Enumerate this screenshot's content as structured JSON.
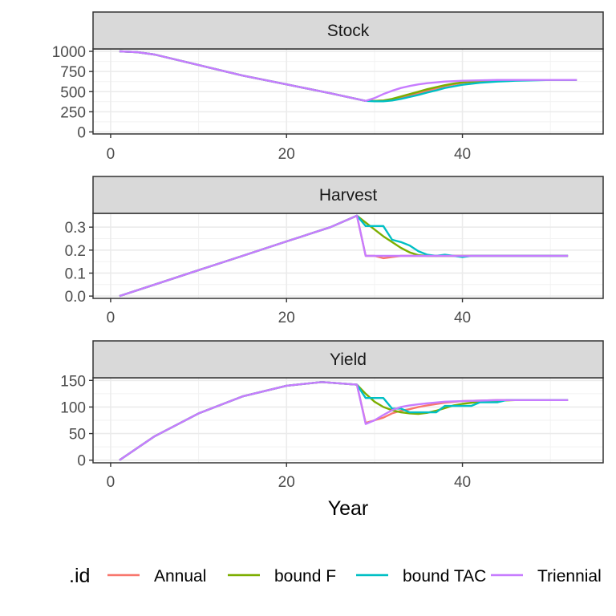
{
  "chart_data": {
    "type": "line",
    "facet_wrap": "vertical",
    "xlabel": "Year",
    "ylabel": "",
    "xlim": [
      -2,
      56
    ],
    "x_ticks": [
      0,
      20,
      40
    ],
    "grid": true,
    "theme": "bw",
    "legend": {
      "title": ".id",
      "position": "bottom",
      "entries": [
        "Annual",
        "bound F",
        "bound TAC",
        "Triennial"
      ],
      "colors": [
        "#F8766D",
        "#7CAE00",
        "#00BFC4",
        "#C77CFF"
      ]
    },
    "panels": [
      {
        "title": "Stock",
        "ylim": [
          -25,
          1030
        ],
        "y_ticks": [
          0,
          250,
          500,
          750,
          1000
        ],
        "y_tick_labels": [
          "0",
          "250",
          "500",
          "750",
          "1000"
        ],
        "series": [
          {
            "name": "Annual",
            "x": [
              1,
              3,
              5,
              10,
              15,
              20,
              25,
              29,
              30,
              31,
              32,
              33,
              34,
              35,
              36,
              37,
              38,
              39,
              40,
              42,
              44,
              46,
              48,
              50,
              53
            ],
            "values": [
              1000,
              990,
              960,
              830,
              700,
              590,
              480,
              385,
              385,
              390,
              400,
              425,
              450,
              480,
              510,
              540,
              570,
              590,
              610,
              630,
              640,
              645,
              645,
              645,
              645
            ]
          },
          {
            "name": "bound F",
            "x": [
              1,
              3,
              5,
              10,
              15,
              20,
              25,
              29,
              30,
              31,
              32,
              33,
              34,
              35,
              36,
              37,
              38,
              39,
              40,
              42,
              44,
              46,
              48,
              50,
              53
            ],
            "values": [
              1000,
              990,
              960,
              830,
              700,
              590,
              480,
              385,
              385,
              390,
              410,
              440,
              470,
              500,
              530,
              555,
              580,
              600,
              615,
              630,
              640,
              645,
              645,
              645,
              645
            ]
          },
          {
            "name": "bound TAC",
            "x": [
              1,
              3,
              5,
              10,
              15,
              20,
              25,
              29,
              30,
              31,
              32,
              33,
              34,
              35,
              36,
              37,
              38,
              39,
              40,
              42,
              44,
              46,
              48,
              50,
              53
            ],
            "values": [
              1000,
              990,
              960,
              830,
              700,
              590,
              480,
              385,
              380,
              380,
              390,
              410,
              435,
              460,
              490,
              515,
              545,
              565,
              585,
              610,
              625,
              635,
              640,
              645,
              645
            ]
          },
          {
            "name": "Triennial",
            "x": [
              1,
              3,
              5,
              10,
              15,
              20,
              25,
              29,
              30,
              31,
              32,
              33,
              34,
              35,
              36,
              37,
              38,
              39,
              40,
              42,
              44,
              46,
              48,
              50,
              53
            ],
            "values": [
              1000,
              990,
              960,
              830,
              700,
              590,
              480,
              385,
              420,
              470,
              510,
              545,
              570,
              590,
              605,
              615,
              625,
              630,
              635,
              640,
              645,
              645,
              645,
              645,
              645
            ]
          }
        ]
      },
      {
        "title": "Harvest",
        "ylim": [
          -0.01,
          0.36
        ],
        "y_ticks": [
          0,
          0.1,
          0.2,
          0.3
        ],
        "y_tick_labels": [
          "0.0",
          "0.1",
          "0.2",
          "0.3"
        ],
        "series": [
          {
            "name": "Annual",
            "x": [
              1,
              5,
              10,
              15,
              20,
              25,
              28,
              29,
              30,
              31,
              32,
              33,
              34,
              35,
              36,
              40,
              45,
              52
            ],
            "values": [
              0,
              0.05,
              0.113,
              0.175,
              0.238,
              0.3,
              0.35,
              0.175,
              0.175,
              0.165,
              0.17,
              0.175,
              0.175,
              0.175,
              0.175,
              0.175,
              0.175,
              0.175
            ]
          },
          {
            "name": "bound F",
            "x": [
              1,
              5,
              10,
              15,
              20,
              25,
              28,
              29,
              30,
              31,
              32,
              33,
              34,
              35,
              36,
              37,
              40,
              45,
              52
            ],
            "values": [
              0,
              0.05,
              0.113,
              0.175,
              0.238,
              0.3,
              0.35,
              0.32,
              0.29,
              0.26,
              0.235,
              0.21,
              0.19,
              0.178,
              0.175,
              0.175,
              0.175,
              0.175,
              0.175
            ]
          },
          {
            "name": "bound TAC",
            "x": [
              1,
              5,
              10,
              15,
              20,
              25,
              28,
              29,
              30,
              31,
              32,
              33,
              34,
              35,
              36,
              37,
              38,
              39,
              40,
              41,
              42,
              45,
              52
            ],
            "values": [
              0,
              0.05,
              0.113,
              0.175,
              0.238,
              0.3,
              0.35,
              0.305,
              0.305,
              0.305,
              0.245,
              0.235,
              0.22,
              0.195,
              0.18,
              0.175,
              0.18,
              0.175,
              0.17,
              0.175,
              0.175,
              0.175,
              0.175
            ]
          },
          {
            "name": "Triennial",
            "x": [
              1,
              5,
              10,
              15,
              20,
              25,
              28,
              29,
              30,
              35,
              40,
              45,
              52
            ],
            "values": [
              0,
              0.05,
              0.113,
              0.175,
              0.238,
              0.3,
              0.35,
              0.175,
              0.175,
              0.175,
              0.175,
              0.175,
              0.175
            ]
          }
        ]
      },
      {
        "title": "Yield",
        "ylim": [
          -5,
          155
        ],
        "y_ticks": [
          0,
          50,
          100,
          150
        ],
        "y_tick_labels": [
          "0",
          "50",
          "100",
          "150"
        ],
        "series": [
          {
            "name": "Annual",
            "x": [
              1,
              5,
              10,
              15,
              20,
              24,
              28,
              29,
              30,
              31,
              32,
              33,
              34,
              35,
              36,
              38,
              40,
              42,
              44,
              46,
              48,
              52
            ],
            "values": [
              0,
              45,
              88,
              120,
              140,
              147,
              142,
              70,
              75,
              80,
              88,
              93,
              96,
              100,
              103,
              108,
              111,
              112,
              113,
              113,
              113,
              113
            ]
          },
          {
            "name": "bound F",
            "x": [
              1,
              5,
              10,
              15,
              20,
              24,
              28,
              29,
              30,
              31,
              32,
              33,
              34,
              35,
              36,
              37,
              38,
              39,
              40,
              42,
              44,
              46,
              48,
              52
            ],
            "values": [
              0,
              45,
              88,
              120,
              140,
              147,
              142,
              125,
              110,
              100,
              94,
              90,
              88,
              87,
              89,
              93,
              98,
              103,
              106,
              110,
              112,
              113,
              113,
              113
            ]
          },
          {
            "name": "bound TAC",
            "x": [
              1,
              5,
              10,
              15,
              20,
              24,
              28,
              29,
              30,
              31,
              32,
              33,
              34,
              35,
              36,
              37,
              38,
              39,
              40,
              41,
              42,
              43,
              44,
              45,
              46,
              52
            ],
            "values": [
              0,
              45,
              88,
              120,
              140,
              147,
              142,
              117,
              117,
              117,
              97,
              97,
              90,
              90,
              90,
              90,
              102,
              102,
              102,
              102,
              109,
              109,
              109,
              113,
              113,
              113
            ]
          },
          {
            "name": "Triennial",
            "x": [
              1,
              5,
              10,
              15,
              20,
              24,
              28,
              29,
              30,
              31,
              32,
              33,
              34,
              35,
              36,
              38,
              40,
              42,
              44,
              46,
              48,
              52
            ],
            "values": [
              0,
              45,
              88,
              120,
              140,
              147,
              142,
              68,
              75,
              85,
              94,
              100,
              103,
              105,
              107,
              110,
              111,
              112,
              113,
              113,
              113,
              113
            ]
          }
        ]
      }
    ]
  }
}
